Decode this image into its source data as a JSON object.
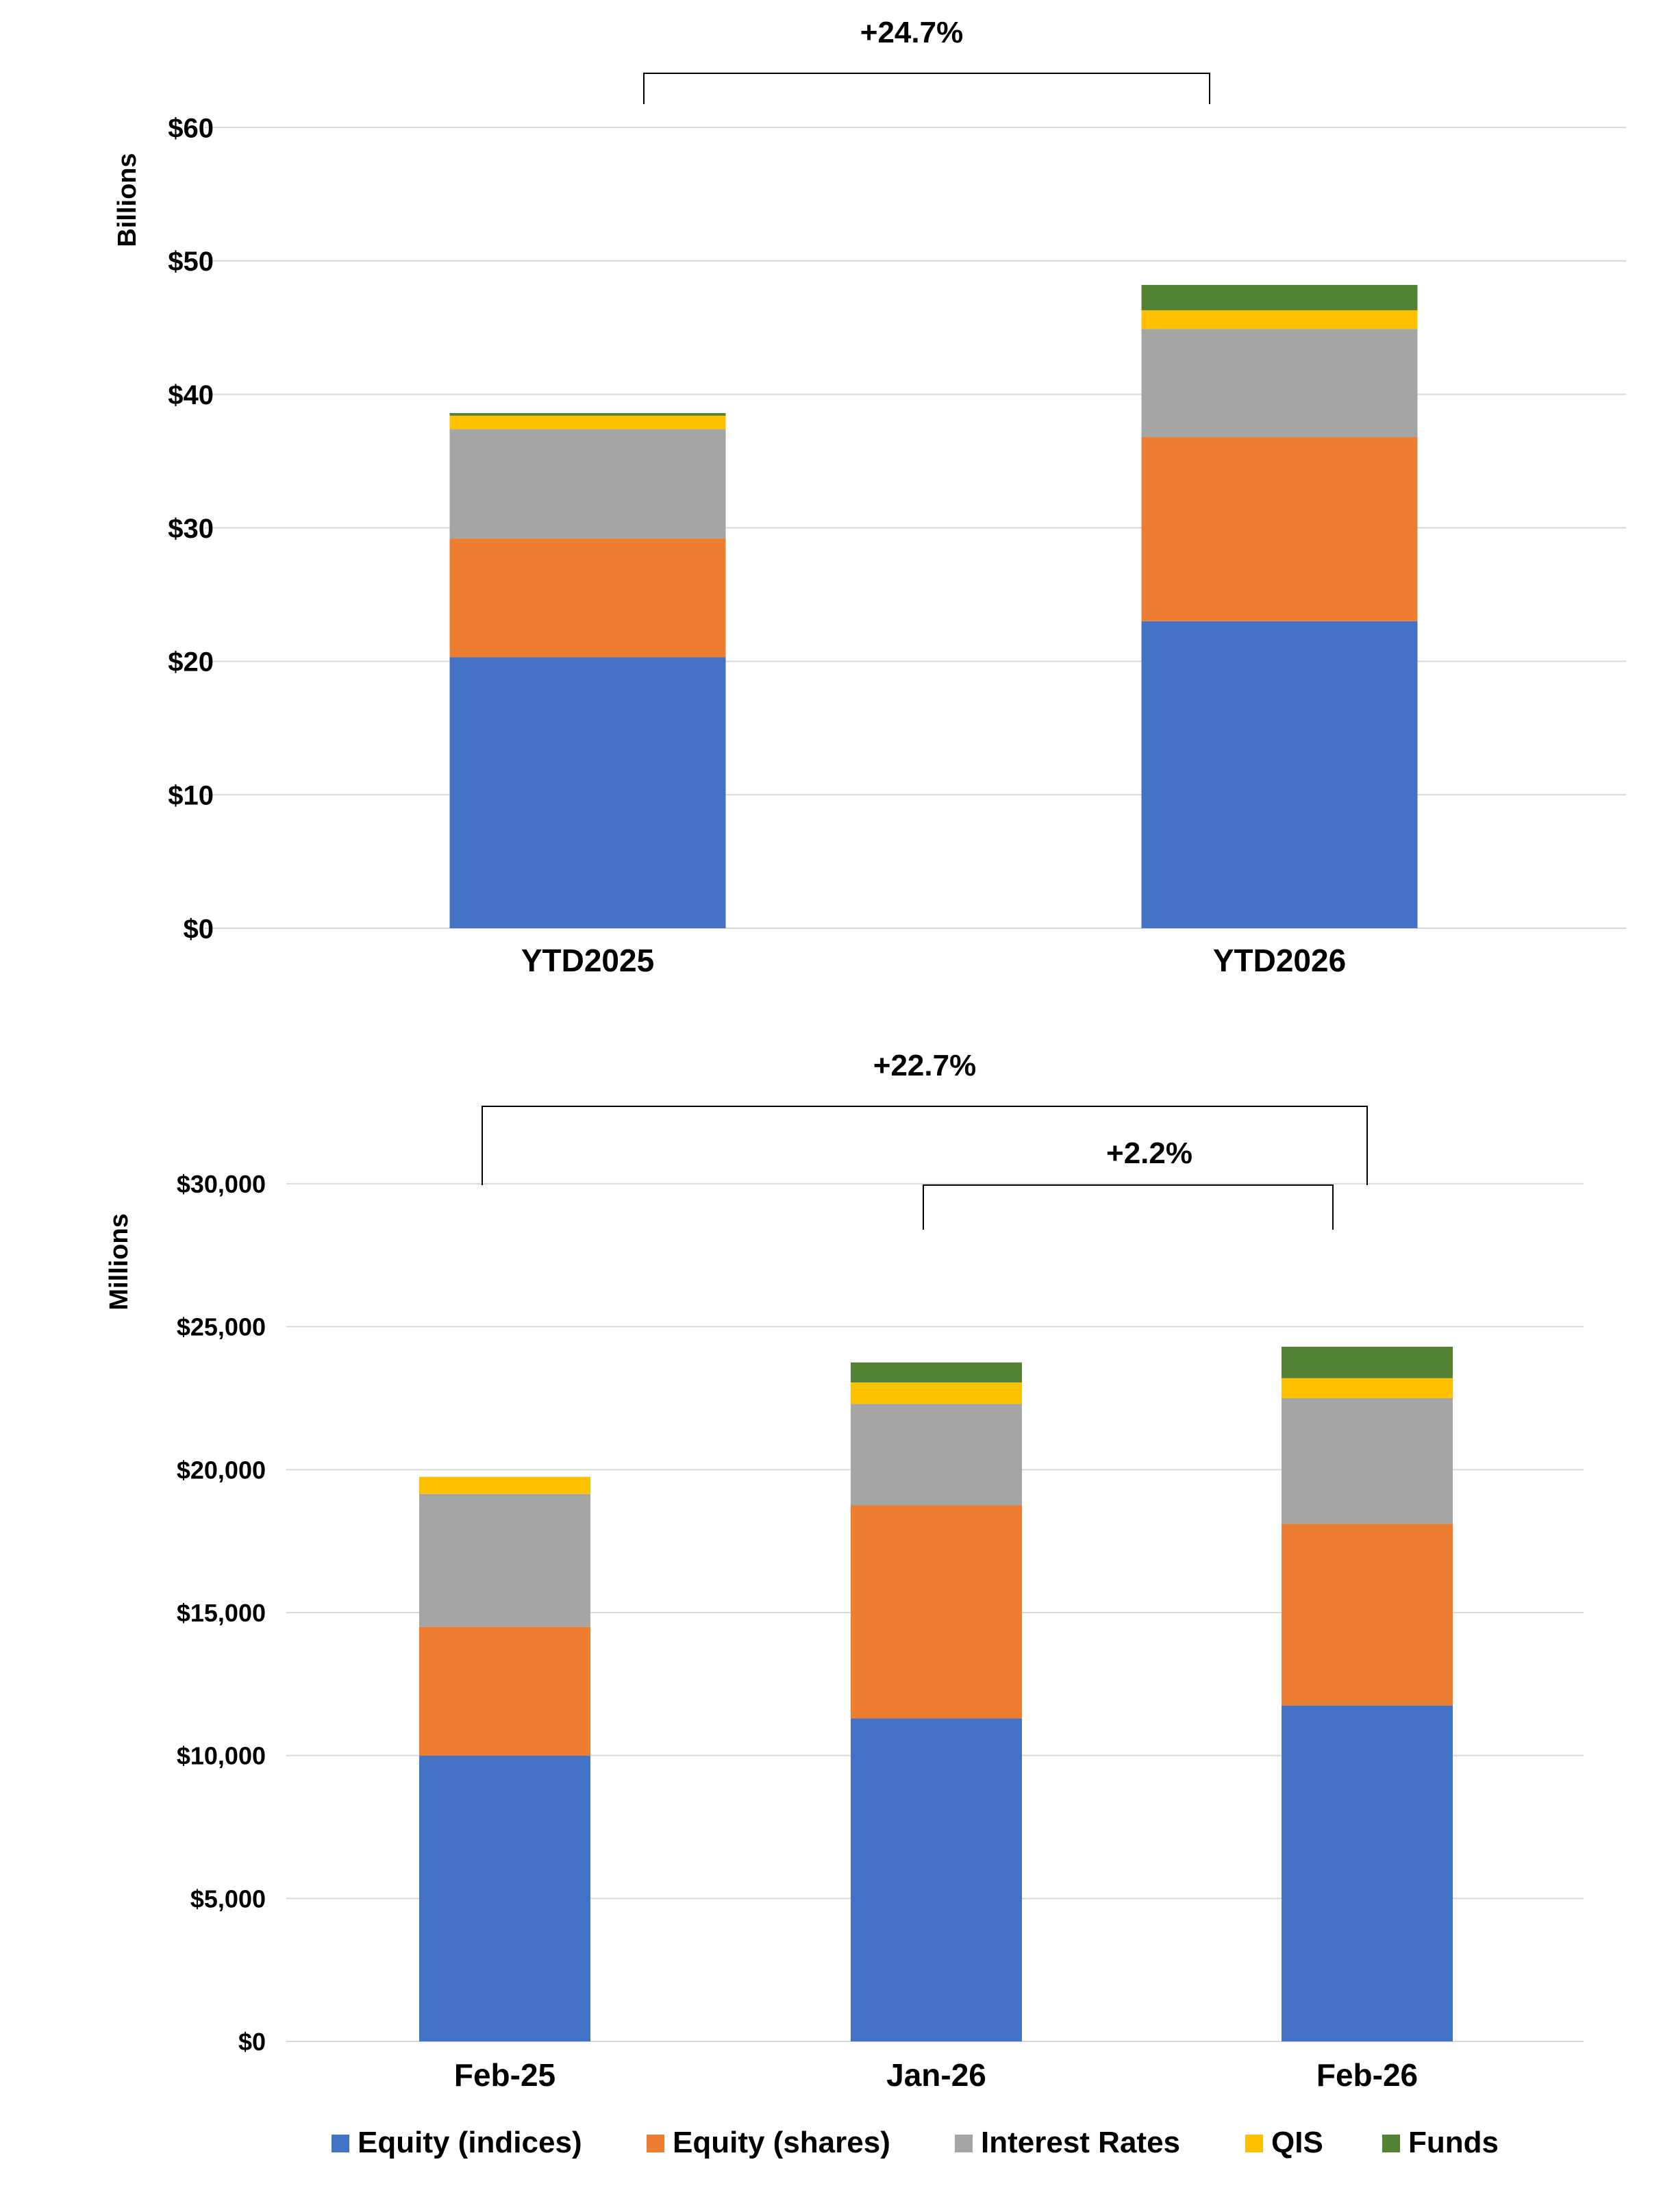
{
  "colors": {
    "Equity (indices)": "#4472c4",
    "Equity (shares)": "#ed7d31",
    "Interest Rates": "#a5a5a5",
    "QIS": "#ffc000",
    "Funds": "#548235"
  },
  "legend": [
    "Equity (indices)",
    "Equity (shares)",
    "Interest Rates",
    "QIS",
    "Funds"
  ],
  "chart_data": [
    {
      "type": "bar",
      "stacked": true,
      "title": "",
      "ylabel": "Billions",
      "xlabel": "",
      "ylim": [
        0,
        60
      ],
      "yticks": [
        0,
        10,
        20,
        30,
        40,
        50,
        60
      ],
      "ytick_labels": [
        "$0",
        "$10",
        "$20",
        "$30",
        "$40",
        "$50",
        "$60"
      ],
      "categories": [
        "YTD2025",
        "YTD2026"
      ],
      "series": [
        {
          "name": "Equity (indices)",
          "values": [
            20.3,
            23.0
          ]
        },
        {
          "name": "Equity (shares)",
          "values": [
            8.9,
            13.8
          ]
        },
        {
          "name": "Interest Rates",
          "values": [
            8.2,
            8.1
          ]
        },
        {
          "name": "QIS",
          "values": [
            1.0,
            1.4
          ]
        },
        {
          "name": "Funds",
          "values": [
            0.2,
            1.9
          ]
        }
      ],
      "grid": true,
      "annotations": [
        {
          "label": "+24.7%",
          "from": "YTD2025",
          "to": "YTD2026"
        }
      ]
    },
    {
      "type": "bar",
      "stacked": true,
      "title": "",
      "ylabel": "Millions",
      "xlabel": "",
      "ylim": [
        0,
        30000
      ],
      "yticks": [
        0,
        5000,
        10000,
        15000,
        20000,
        25000,
        30000
      ],
      "ytick_labels": [
        "$0",
        "$5,000",
        "$10,000",
        "$15,000",
        "$20,000",
        "$25,000",
        "$30,000"
      ],
      "categories": [
        "Feb-25",
        "Jan-26",
        "Feb-26"
      ],
      "series": [
        {
          "name": "Equity (indices)",
          "values": [
            10000,
            11300,
            11750
          ]
        },
        {
          "name": "Equity (shares)",
          "values": [
            4500,
            7450,
            6350
          ]
        },
        {
          "name": "Interest Rates",
          "values": [
            4650,
            3550,
            4400
          ]
        },
        {
          "name": "QIS",
          "values": [
            600,
            750,
            700
          ]
        },
        {
          "name": "Funds",
          "values": [
            0,
            700,
            1100
          ]
        }
      ],
      "grid": true,
      "annotations": [
        {
          "label": "+22.7%",
          "from": "Feb-25",
          "to": "Feb-26"
        },
        {
          "label": "+2.2%",
          "from": "Jan-26",
          "to": "Feb-26"
        }
      ]
    }
  ]
}
